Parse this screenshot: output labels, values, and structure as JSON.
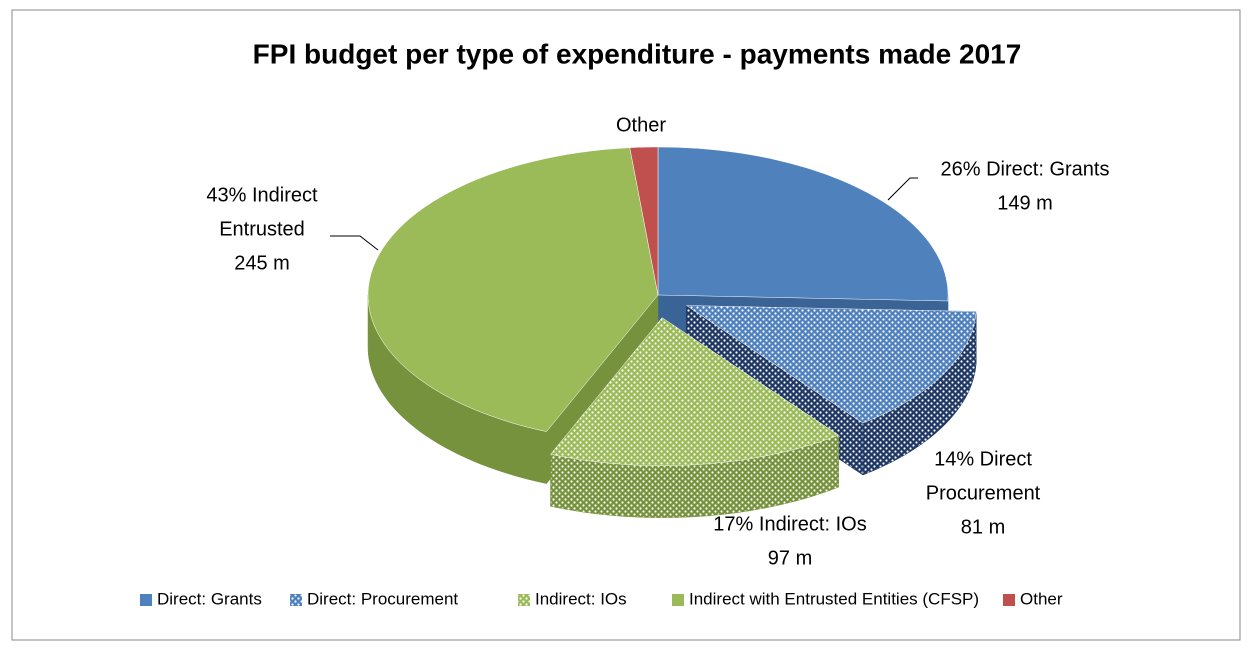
{
  "chart_data": {
    "type": "pie3d",
    "title": "FPI budget per type of expenditure - payments made 2017",
    "categories": [
      "Direct: Grants",
      "Direct: Procurement",
      "Indirect: IOs",
      "Indirect with Entrusted Entities (CFSP)",
      "Other"
    ],
    "values": [
      149,
      81,
      97,
      245,
      9
    ],
    "value_labels": [
      [
        "26% Direct: Grants",
        "149 m"
      ],
      [
        "14% Direct",
        "Procurement",
        "81 m"
      ],
      [
        "17% Indirect: IOs",
        "97 m"
      ],
      [
        "43% Indirect",
        "Entrusted",
        "245 m"
      ],
      [
        "Other"
      ]
    ],
    "colors": [
      "#4f81bd",
      "#4f81bd",
      "#9bbb59",
      "#9bbb59",
      "#c0504d"
    ],
    "side_colors": [
      "#3a6496",
      "#1f3864",
      "#76923c",
      "#76923c",
      "#943634"
    ],
    "patterned": [
      false,
      true,
      true,
      false,
      false
    ],
    "exploded": [
      false,
      true,
      true,
      false,
      false
    ],
    "legend": "bottom"
  }
}
